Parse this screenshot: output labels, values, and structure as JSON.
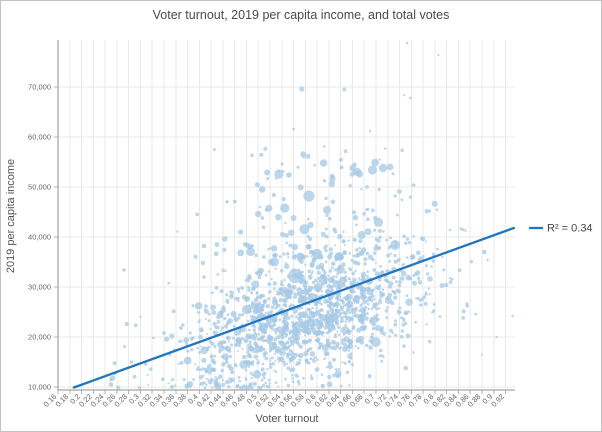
{
  "window": {
    "background": "#ffffff",
    "border_color": "#c3c3c3"
  },
  "chart_data": {
    "type": "scatter",
    "title": "Voter turnout, 2019 per capita income, and total votes",
    "xlabel": "Voter turnout",
    "ylabel": "2019 per capita income",
    "xlim": [
      0.16,
      0.936
    ],
    "ylim": [
      9400,
      79400
    ],
    "grid": true,
    "legend_position": "right",
    "point_color": "#a5c8e4",
    "point_opacity": 0.75,
    "x_ticks": [
      "0.16",
      "0.18",
      "0.2",
      "0.22",
      "0.24",
      "0.26",
      "0.28",
      "0.3",
      "0.32",
      "0.34",
      "0.36",
      "0.38",
      "0.4",
      "0.42",
      "0.44",
      "0.46",
      "0.48",
      "0.5",
      "0.52",
      "0.54",
      "0.56",
      "0.58",
      "0.6",
      "0.62",
      "0.64",
      "0.66",
      "0.68",
      "0.7",
      "0.72",
      "0.74",
      "0.76",
      "0.78",
      "0.8",
      "0.82",
      "0.84",
      "0.86",
      "0.88",
      "0.9",
      "0.92"
    ],
    "y_ticks": [
      {
        "value": 10000,
        "label": "10,000"
      },
      {
        "value": 20000,
        "label": "20,000"
      },
      {
        "value": 30000,
        "label": "30,000"
      },
      {
        "value": 40000,
        "label": "40,000"
      },
      {
        "value": 50000,
        "label": "50,000"
      },
      {
        "value": 60000,
        "label": "60,000"
      },
      {
        "value": 70000,
        "label": "70,000"
      }
    ],
    "trendline": {
      "x1": 0.187,
      "y1": 9900,
      "x2": 0.934,
      "y2": 41800,
      "color": "#2176bd",
      "width": 2.3,
      "label": "R² = 0.34"
    },
    "scatter": {
      "seed": 11,
      "clusters": [
        {
          "name": "core-cloud",
          "n": 1500,
          "x_mean": 0.578,
          "x_sd": 0.103,
          "x_clip": [
            0.25,
            0.932
          ],
          "y_mode": "line",
          "y_slope": 33000,
          "y_intercept": 4500,
          "y_noise_sd": 6200,
          "y_clip": [
            9800,
            50000
          ],
          "r_base": 1.0,
          "r_spread": 0.85,
          "big_p": 0.05,
          "big_extra": 2.8
        },
        {
          "name": "upper-sparse",
          "n": 150,
          "x_mean": 0.615,
          "x_sd": 0.1,
          "x_clip": [
            0.33,
            0.9
          ],
          "y_mode": "band",
          "y_min": 36000,
          "y_max": 58500,
          "y_pow": 1.7,
          "r_base": 1.1,
          "r_spread": 1.0,
          "big_p": 0.1,
          "big_extra": 3.0
        }
      ],
      "outliers": [
        [
          0.574,
          69600,
          2.6
        ],
        [
          0.646,
          69500,
          2.0
        ],
        [
          0.753,
          78800,
          1.3
        ],
        [
          0.806,
          76400,
          1.1
        ],
        [
          0.748,
          68400,
          1.1
        ],
        [
          0.758,
          67800,
          1.3
        ],
        [
          0.56,
          61600,
          1.4
        ],
        [
          0.69,
          61200,
          1.2
        ],
        [
          0.611,
          54800,
          3.8
        ],
        [
          0.66,
          53800,
          3.2
        ],
        [
          0.694,
          53400,
          4.6
        ],
        [
          0.712,
          53800,
          4.2
        ],
        [
          0.724,
          54000,
          3.4
        ],
        [
          0.672,
          52600,
          3.6
        ],
        [
          0.552,
          52400,
          2.8
        ],
        [
          0.515,
          52900,
          3.0
        ],
        [
          0.625,
          50600,
          3.2
        ],
        [
          0.586,
          48200,
          5.6
        ],
        [
          0.617,
          45400,
          4.0
        ],
        [
          0.545,
          45800,
          4.6
        ],
        [
          0.5,
          44600,
          3.2
        ],
        [
          0.56,
          43800,
          3.0
        ],
        [
          0.47,
          41000,
          2.6
        ],
        [
          0.43,
          38500,
          2.4
        ],
        [
          0.563,
          32200,
          7.2
        ],
        [
          0.6,
          36600,
          5.2
        ],
        [
          0.528,
          35000,
          4.4
        ],
        [
          0.495,
          30500,
          4.0
        ],
        [
          0.545,
          29000,
          5.0
        ],
        [
          0.575,
          27500,
          4.4
        ],
        [
          0.61,
          31500,
          4.8
        ],
        [
          0.64,
          33500,
          4.2
        ],
        [
          0.406,
          34800,
          2.2
        ],
        [
          0.348,
          30800,
          1.4
        ],
        [
          0.3,
          24000,
          1.2
        ],
        [
          0.272,
          33400,
          1.8
        ],
        [
          0.932,
          24200,
          1.3
        ],
        [
          0.905,
          20000,
          1.2
        ],
        [
          0.88,
          16500,
          1.1
        ],
        [
          0.48,
          25500,
          4.6
        ],
        [
          0.52,
          23500,
          4.2
        ],
        [
          0.465,
          21000,
          3.6
        ],
        [
          0.435,
          18500,
          3.0
        ],
        [
          0.58,
          21500,
          4.0
        ],
        [
          0.62,
          24000,
          4.4
        ],
        [
          0.655,
          26500,
          3.8
        ],
        [
          0.69,
          29000,
          3.4
        ],
        [
          0.5,
          17500,
          3.2
        ],
        [
          0.54,
          15500,
          2.8
        ],
        [
          0.6,
          13500,
          2.4
        ]
      ]
    }
  }
}
